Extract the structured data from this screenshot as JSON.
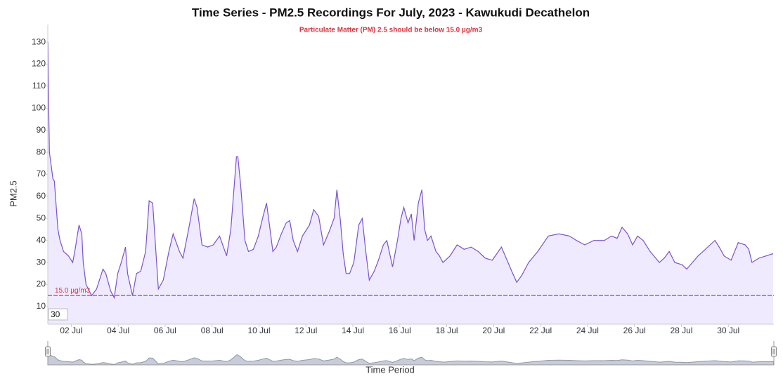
{
  "chart_data": {
    "type": "area",
    "title": "Time Series - PM2.5 Recordings For July, 2023 - Kawukudi Decathelon",
    "subtitle": "Particulate Matter (PM) 2.5 should be below 15.0 µg/m3",
    "y_label": "PM2.5",
    "x_label": "Time Period",
    "threshold": 15,
    "threshold_label": "15.0 µg/m3",
    "range_input": 30,
    "line_color": "#7b52d3",
    "fill_color": "#efeafd",
    "threshold_color": "#e0303a",
    "xlim": [
      1,
      31.94
    ],
    "ylim": [
      2,
      138
    ],
    "yticks": [
      10,
      20,
      30,
      40,
      50,
      60,
      70,
      80,
      90,
      100,
      110,
      120,
      130
    ],
    "xticks": [
      {
        "value": 2,
        "label": "02 Jul"
      },
      {
        "value": 4,
        "label": "04 Jul"
      },
      {
        "value": 6,
        "label": "06 Jul"
      },
      {
        "value": 8,
        "label": "08 Jul"
      },
      {
        "value": 10,
        "label": "10 Jul"
      },
      {
        "value": 12,
        "label": "12 Jul"
      },
      {
        "value": 14,
        "label": "14 Jul"
      },
      {
        "value": 16,
        "label": "16 Jul"
      },
      {
        "value": 18,
        "label": "18 Jul"
      },
      {
        "value": 20,
        "label": "20 Jul"
      },
      {
        "value": 22,
        "label": "22 Jul"
      },
      {
        "value": 24,
        "label": "24 Jul"
      },
      {
        "value": 26,
        "label": "26 Jul"
      },
      {
        "value": 28,
        "label": "28 Jul"
      },
      {
        "value": 30,
        "label": "30 Jul"
      }
    ],
    "x": [
      1.01,
      1.04,
      1.07,
      1.22,
      1.28,
      1.43,
      1.52,
      1.67,
      1.88,
      2.06,
      2.15,
      2.33,
      2.45,
      2.51,
      2.63,
      2.87,
      3.08,
      3.35,
      3.47,
      3.68,
      3.83,
      3.98,
      4.13,
      4.31,
      4.4,
      4.61,
      4.78,
      4.96,
      5.17,
      5.32,
      5.47,
      5.71,
      5.92,
      6.16,
      6.34,
      6.61,
      6.76,
      7.0,
      7.24,
      7.36,
      7.57,
      7.81,
      8.05,
      8.32,
      8.62,
      8.8,
      9.04,
      9.1,
      9.22,
      9.4,
      9.55,
      9.76,
      9.97,
      10.15,
      10.32,
      10.47,
      10.59,
      10.74,
      10.95,
      11.16,
      11.31,
      11.46,
      11.64,
      11.85,
      12.15,
      12.33,
      12.54,
      12.75,
      12.99,
      13.2,
      13.32,
      13.47,
      13.59,
      13.71,
      13.86,
      14.04,
      14.25,
      14.4,
      14.55,
      14.7,
      14.91,
      15.09,
      15.3,
      15.45,
      15.69,
      15.9,
      16.05,
      16.17,
      16.35,
      16.49,
      16.61,
      16.79,
      16.94,
      17.06,
      17.18,
      17.33,
      17.54,
      17.69,
      17.84,
      18.14,
      18.44,
      18.74,
      19.04,
      19.34,
      19.64,
      19.94,
      20.33,
      20.53,
      20.77,
      20.98,
      21.19,
      21.49,
      21.88,
      22.33,
      22.78,
      23.23,
      23.53,
      23.88,
      24.27,
      24.72,
      25.02,
      25.26,
      25.47,
      25.71,
      25.92,
      26.13,
      26.37,
      26.67,
      27.06,
      27.27,
      27.48,
      27.72,
      28.02,
      28.23,
      28.47,
      28.71,
      28.92,
      29.22,
      29.43,
      29.61,
      29.82,
      30.12,
      30.42,
      30.72,
      30.87,
      31.01,
      31.31,
      31.61,
      31.91
    ],
    "values": [
      130,
      100,
      80,
      68,
      67,
      45,
      40,
      35,
      33,
      30,
      35,
      47,
      43,
      30,
      20,
      15,
      18,
      27,
      25,
      17,
      14,
      25,
      30,
      37,
      25,
      15,
      25,
      26,
      35,
      58,
      57,
      18,
      22,
      35,
      43,
      35,
      32,
      45,
      59,
      55,
      38,
      37,
      38,
      42,
      33,
      45,
      78,
      78,
      65,
      40,
      35,
      36,
      42,
      50,
      57,
      45,
      35,
      37,
      43,
      48,
      49,
      40,
      35,
      42,
      47,
      54,
      51,
      38,
      44,
      50,
      63,
      49,
      34,
      25,
      25,
      30,
      47,
      50,
      35,
      22,
      26,
      31,
      38,
      40,
      28,
      40,
      50,
      55,
      48,
      52,
      40,
      57,
      63,
      45,
      40,
      42,
      35,
      33,
      30,
      33,
      38,
      36,
      37,
      35,
      32,
      31,
      37,
      32,
      26,
      21,
      24,
      30,
      35,
      42,
      43,
      42,
      40,
      38,
      40,
      40,
      42,
      41,
      46,
      43,
      38,
      42,
      40,
      35,
      30,
      32,
      35,
      30,
      29,
      27,
      30,
      33,
      35,
      38,
      40,
      37,
      33,
      31,
      39,
      38,
      36,
      30,
      32,
      33,
      34
    ]
  }
}
